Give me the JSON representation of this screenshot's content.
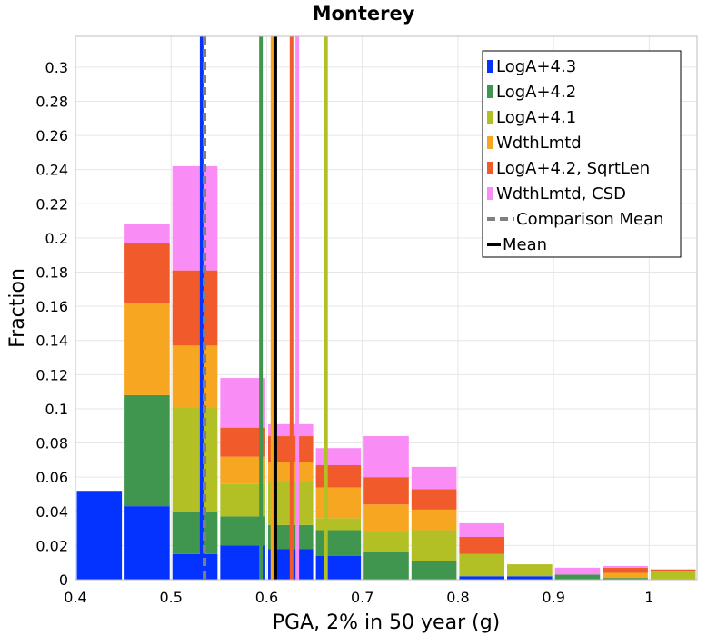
{
  "chart_data": {
    "type": "bar",
    "stacked": true,
    "title": "Monterey",
    "xlabel": "PGA, 2% in 50 year (g)",
    "ylabel": "Fraction",
    "xlim": [
      0.4,
      1.05
    ],
    "ylim": [
      0,
      0.318
    ],
    "grid": true,
    "legend_position": "top-right",
    "xticks": [
      "0.4",
      "0.5",
      "0.6",
      "0.7",
      "0.8",
      "0.9",
      "1"
    ],
    "xtick_values": [
      0.4,
      0.5,
      0.6,
      0.7,
      0.8,
      0.9,
      1.0
    ],
    "yticks": [
      "0",
      "0.02",
      "0.04",
      "0.06",
      "0.08",
      "0.1",
      "0.12",
      "0.14",
      "0.16",
      "0.18",
      "0.2",
      "0.22",
      "0.24",
      "0.26",
      "0.28",
      "0.3"
    ],
    "ytick_values": [
      0,
      0.02,
      0.04,
      0.06,
      0.08,
      0.1,
      0.12,
      0.14,
      0.16,
      0.18,
      0.2,
      0.22,
      0.24,
      0.26,
      0.28,
      0.3
    ],
    "bin_width": 0.05,
    "bin_centers": [
      0.425,
      0.475,
      0.525,
      0.575,
      0.625,
      0.675,
      0.725,
      0.775,
      0.825,
      0.875,
      0.925,
      0.975,
      1.025
    ],
    "series": [
      {
        "name": "LogA+4.3",
        "color": "#0433ff",
        "values": [
          0.052,
          0.043,
          0.015,
          0.02,
          0.018,
          0.014,
          0.0,
          0.0,
          0.002,
          0.002,
          0.0,
          0.0,
          0.0
        ]
      },
      {
        "name": "LogA+4.2",
        "color": "#40964f",
        "values": [
          0.0,
          0.065,
          0.025,
          0.017,
          0.014,
          0.015,
          0.016,
          0.011,
          0.0,
          0.0,
          0.003,
          0.001,
          0.0
        ]
      },
      {
        "name": "LogA+4.1",
        "color": "#b2c025",
        "values": [
          0.0,
          0.0,
          0.061,
          0.019,
          0.025,
          0.007,
          0.012,
          0.018,
          0.013,
          0.007,
          0.0,
          0.0,
          0.005
        ]
      },
      {
        "name": "WdthLmtd",
        "color": "#f7a621",
        "values": [
          0.0,
          0.054,
          0.036,
          0.016,
          0.012,
          0.018,
          0.016,
          0.012,
          0.0,
          0.0,
          0.0,
          0.003,
          0.0
        ]
      },
      {
        "name": "LogA+4.2, SqrtLen",
        "color": "#f15a2b",
        "values": [
          0.0,
          0.035,
          0.044,
          0.017,
          0.015,
          0.013,
          0.016,
          0.012,
          0.01,
          0.0,
          0.0,
          0.003,
          0.001
        ]
      },
      {
        "name": "WdthLmtd, CSD",
        "color": "#f98df5",
        "values": [
          0.0,
          0.011,
          0.061,
          0.029,
          0.007,
          0.01,
          0.024,
          0.013,
          0.008,
          0.0,
          0.004,
          0.001,
          0.0
        ]
      }
    ],
    "vertical_lines": [
      {
        "name": "LogA+4.3",
        "x": 0.532,
        "color": "#0433ff",
        "dashed": false
      },
      {
        "name": "LogA+4.2",
        "x": 0.594,
        "color": "#40964f",
        "dashed": false
      },
      {
        "name": "LogA+4.1",
        "x": 0.662,
        "color": "#b2c025",
        "dashed": false
      },
      {
        "name": "WdthLmtd",
        "x": 0.606,
        "color": "#f7a621",
        "dashed": false
      },
      {
        "name": "LogA+4.2, SqrtLen",
        "x": 0.626,
        "color": "#f15a2b",
        "dashed": false
      },
      {
        "name": "WdthLmtd, CSD",
        "x": 0.632,
        "color": "#f98df5",
        "dashed": false
      },
      {
        "name": "Comparison Mean",
        "x": 0.535,
        "color": "#808080",
        "dashed": true
      },
      {
        "name": "Mean",
        "x": 0.609,
        "color": "#000000",
        "dashed": false
      }
    ],
    "legend": [
      {
        "label": "LogA+4.3",
        "color": "#0433ff",
        "kind": "box"
      },
      {
        "label": "LogA+4.2",
        "color": "#40964f",
        "kind": "box"
      },
      {
        "label": "LogA+4.1",
        "color": "#b2c025",
        "kind": "box"
      },
      {
        "label": "WdthLmtd",
        "color": "#f7a621",
        "kind": "box"
      },
      {
        "label": "LogA+4.2, SqrtLen",
        "color": "#f15a2b",
        "kind": "box"
      },
      {
        "label": "WdthLmtd, CSD",
        "color": "#f98df5",
        "kind": "box"
      },
      {
        "label": "Comparison Mean",
        "color": "#808080",
        "kind": "dash"
      },
      {
        "label": "Mean",
        "color": "#000000",
        "kind": "line"
      }
    ]
  }
}
